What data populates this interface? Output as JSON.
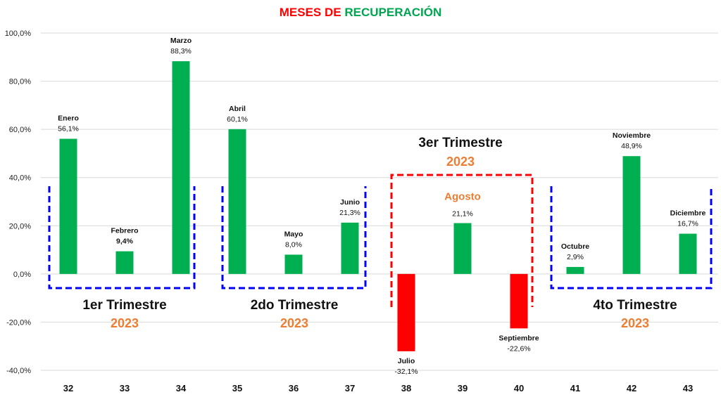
{
  "title": {
    "part1": "MESES DE ",
    "part2": "RECUPERACIÓN",
    "color1": "#ff0000",
    "color2": "#00a550"
  },
  "colors": {
    "positive": "#00b050",
    "negative": "#ff0000",
    "year": "#ed7d31",
    "bracket_blue": "#0000ff",
    "bracket_red": "#ff0000",
    "grid": "#d9d9d9"
  },
  "quarters": [
    {
      "title": "1er Trimestre",
      "year": "2023",
      "color": "blue"
    },
    {
      "title": "2do Trimestre",
      "year": "2023",
      "color": "blue"
    },
    {
      "title": "3er Trimestre",
      "year": "2023",
      "color": "red"
    },
    {
      "title": "4to Trimestre",
      "year": "2023",
      "color": "blue"
    }
  ],
  "chart_data": {
    "type": "bar",
    "title": "MESES DE RECUPERACIÓN",
    "categories": [
      "32",
      "33",
      "34",
      "35",
      "36",
      "37",
      "38",
      "39",
      "40",
      "41",
      "42",
      "43"
    ],
    "ylim": [
      -0.4,
      1.0
    ],
    "yticks": [
      "-40,0%",
      "-20,0%",
      "0,0%",
      "20,0%",
      "40,0%",
      "60,0%",
      "80,0%",
      "100,0%"
    ],
    "grid": true,
    "series": [
      {
        "values": [
          0.561,
          0.094,
          0.883,
          0.601,
          0.08,
          0.213,
          -0.321,
          0.211,
          -0.226,
          0.029,
          0.489,
          0.167
        ],
        "month_labels": [
          "Enero",
          "Febrero",
          "Marzo",
          "Abril",
          "Mayo",
          "Junio",
          "Julio",
          "Agosto",
          "Septiembre",
          "Octubre",
          "Noviembre",
          "Diciembre"
        ],
        "value_labels": [
          "56,1%",
          "9,4%",
          "88,3%",
          "60,1%",
          "8,0%",
          "21,3%",
          "-32,1%",
          "21,1%",
          "-22,6%",
          "2,9%",
          "48,9%",
          "16,7%"
        ]
      }
    ]
  }
}
